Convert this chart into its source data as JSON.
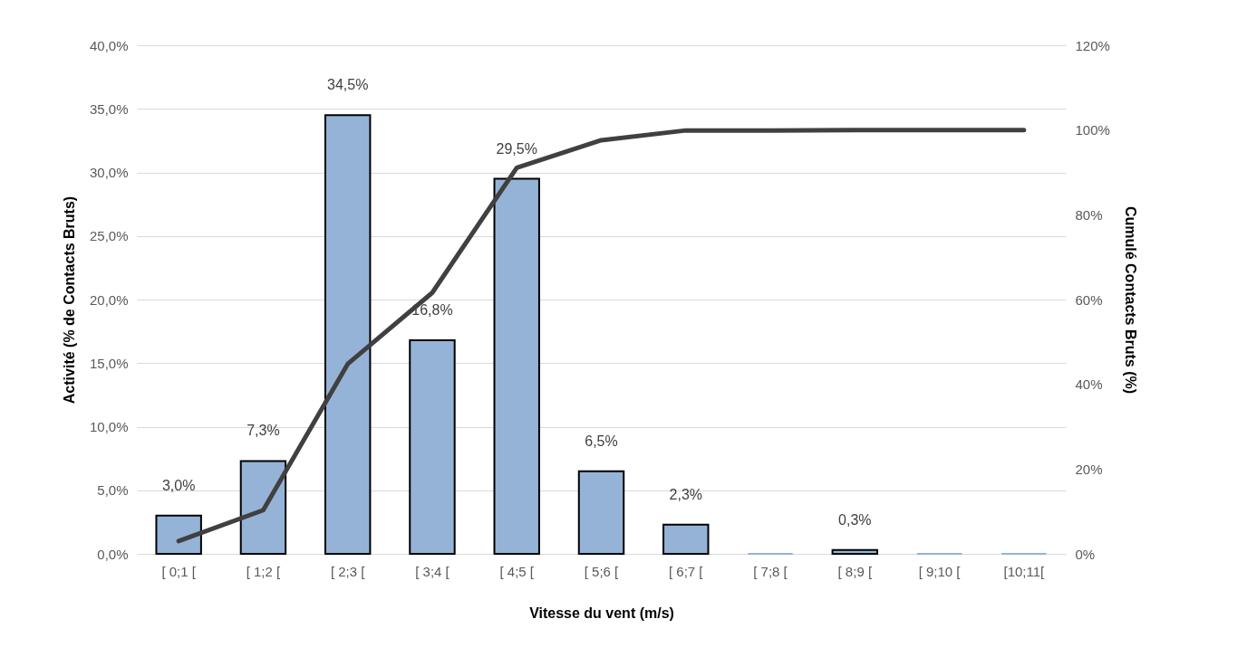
{
  "chart_data": {
    "type": "bar",
    "xlabel": "Vitesse du vent (m/s)",
    "ylabel": "Activité (% de Contacts Bruts)",
    "y2label": "Cumulé Contacts Bruts (%)",
    "categories": [
      "[ 0;1 [",
      "[ 1;2 [",
      "[ 2;3 [",
      "[ 3;4 [",
      "[ 4;5 [",
      "[ 5;6 [",
      "[ 6;7 [",
      "[ 7;8 [",
      "[ 8;9 [",
      "[ 9;10 [",
      "[10;11["
    ],
    "series": [
      {
        "color": "#95b3d7",
        "values": [
          3.0,
          7.3,
          34.5,
          16.8,
          29.5,
          6.5,
          2.3,
          0,
          0.3,
          0,
          0
        ],
        "value_labels": [
          "3,0%",
          "7,3%",
          "34,5%",
          "16,8%",
          "29,5%",
          "6,5%",
          "2,3%",
          null,
          "0,3%",
          null,
          null
        ]
      },
      {
        "type": "line",
        "axis": "y2",
        "color": "#404040",
        "values": [
          3.0,
          10.3,
          44.8,
          61.6,
          91.1,
          97.6,
          99.9,
          99.9,
          100,
          100,
          100
        ]
      }
    ],
    "ylim": [
      0,
      40
    ],
    "yticks": [
      {
        "value": 0,
        "label": "0,0%"
      },
      {
        "value": 5,
        "label": "5,0%"
      },
      {
        "value": 10,
        "label": "10,0%"
      },
      {
        "value": 15,
        "label": "15,0%"
      },
      {
        "value": 20,
        "label": "20,0%"
      },
      {
        "value": 25,
        "label": "25,0%"
      },
      {
        "value": 30,
        "label": "30,0%"
      },
      {
        "value": 35,
        "label": "35,0%"
      },
      {
        "value": 40,
        "label": "40,0%"
      }
    ],
    "y2lim": [
      0,
      120
    ],
    "y2ticks": [
      {
        "value": 0,
        "label": "0%"
      },
      {
        "value": 20,
        "label": "20%"
      },
      {
        "value": 40,
        "label": "40%"
      },
      {
        "value": 60,
        "label": "60%"
      },
      {
        "value": 80,
        "label": "80%"
      },
      {
        "value": 100,
        "label": "100%"
      },
      {
        "value": 120,
        "label": "120%"
      }
    ],
    "grid": "y",
    "legend": false
  }
}
